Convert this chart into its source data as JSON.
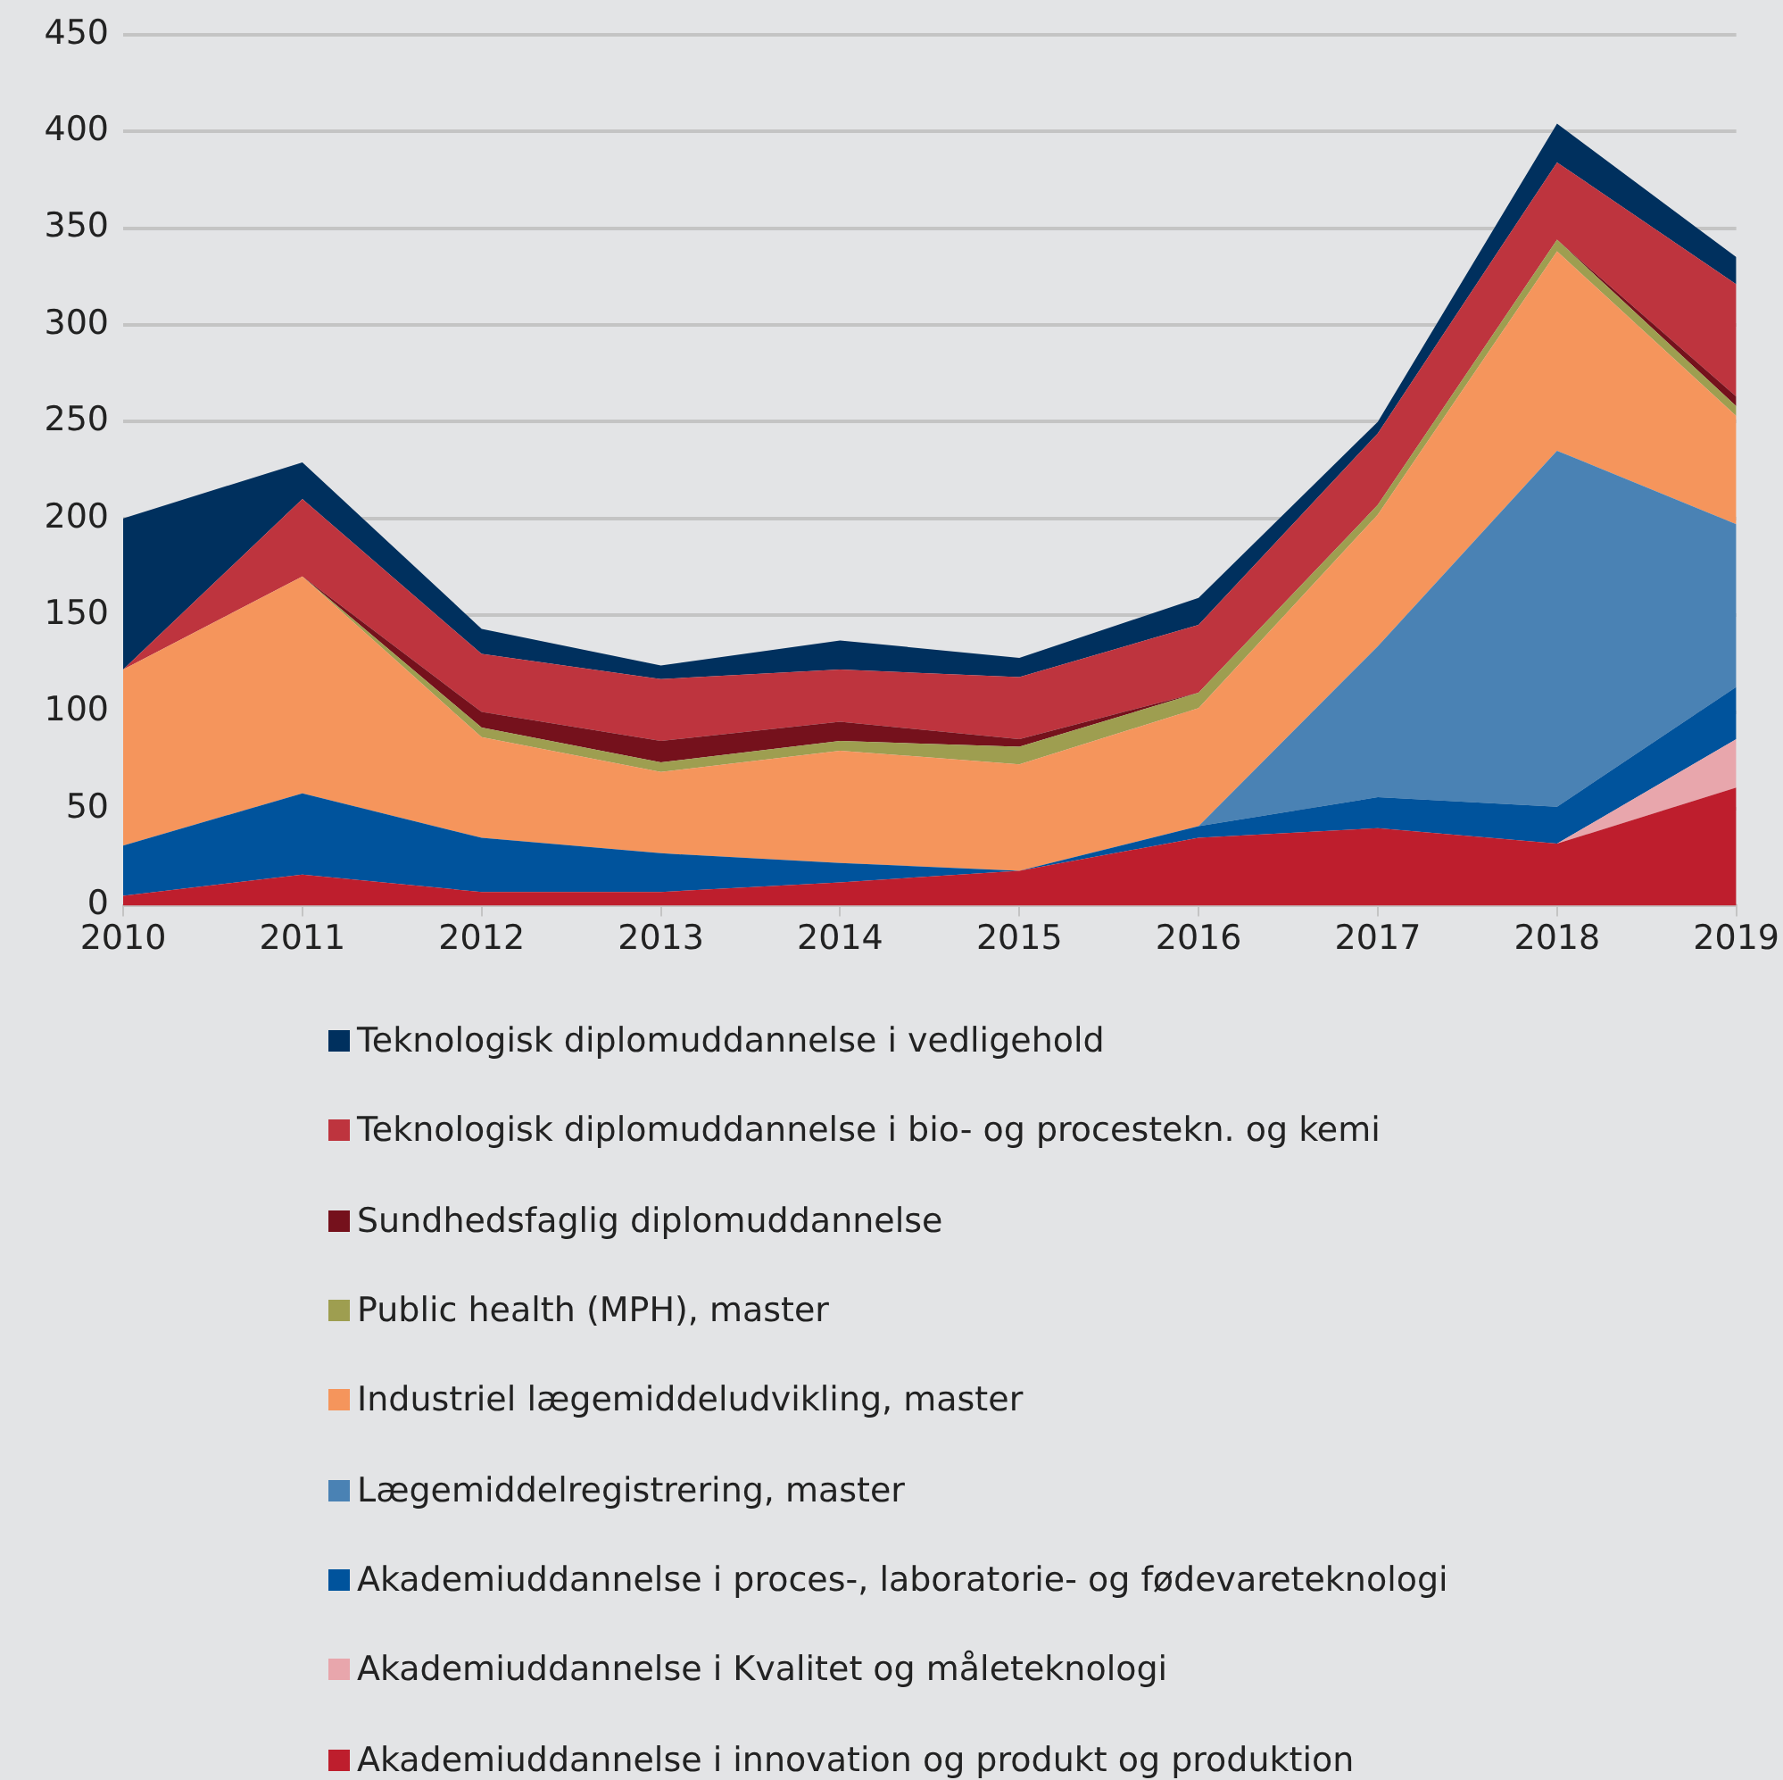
{
  "chart_data": {
    "type": "area",
    "stacked": true,
    "categories": [
      "2010",
      "2011",
      "2012",
      "2013",
      "2014",
      "2015",
      "2016",
      "2017",
      "2018",
      "2019"
    ],
    "ylim": [
      0,
      450
    ],
    "yticks": [
      0,
      50,
      100,
      150,
      200,
      250,
      300,
      350,
      400,
      450
    ],
    "grid": "y",
    "legend": "bottom",
    "series": [
      {
        "name": "Akademiuddannelse i innovation og produkt og produktion",
        "color": "#be1e2d",
        "values": [
          5,
          16,
          7,
          7,
          12,
          18,
          35,
          40,
          32,
          61
        ]
      },
      {
        "name": "Akademiuddannelse i Kvalitet og måleteknologi",
        "color": "#e8a6ac",
        "values": [
          0,
          0,
          0,
          0,
          0,
          0,
          0,
          0,
          0,
          25
        ]
      },
      {
        "name": "Akademiuddannelse i proces-, laboratorie- og fødevareteknologi",
        "color": "#00539c",
        "values": [
          26,
          42,
          28,
          20,
          10,
          0,
          6,
          16,
          19,
          27
        ]
      },
      {
        "name": "Lægemiddelregistrering, master",
        "color": "#4a82b4",
        "values": [
          0,
          0,
          0,
          0,
          0,
          0,
          0,
          78,
          184,
          84
        ]
      },
      {
        "name": "Industriel lægemiddeludvikling, master",
        "color": "#f5955c",
        "values": [
          91,
          112,
          52,
          42,
          58,
          55,
          61,
          68,
          103,
          56
        ]
      },
      {
        "name": "Public health (MPH), master",
        "color": "#9e9e50",
        "values": [
          0,
          0,
          5,
          5,
          5,
          9,
          8,
          5,
          6,
          5
        ]
      },
      {
        "name": "Sundhedsfaglig diplomuddannelse",
        "color": "#75111c",
        "values": [
          0,
          0,
          8,
          11,
          10,
          4,
          0,
          0,
          0,
          5
        ]
      },
      {
        "name": "Teknologisk diplomuddannelse i bio- og procestekn. og kemi",
        "color": "#be343e",
        "values": [
          0,
          40,
          30,
          32,
          27,
          32,
          35,
          37,
          40,
          58
        ]
      },
      {
        "name": "Teknologisk diplomuddannelse i vedligehold",
        "color": "#00305e",
        "values": [
          78,
          19,
          13,
          7,
          15,
          10,
          14,
          6,
          20,
          14
        ]
      }
    ]
  }
}
